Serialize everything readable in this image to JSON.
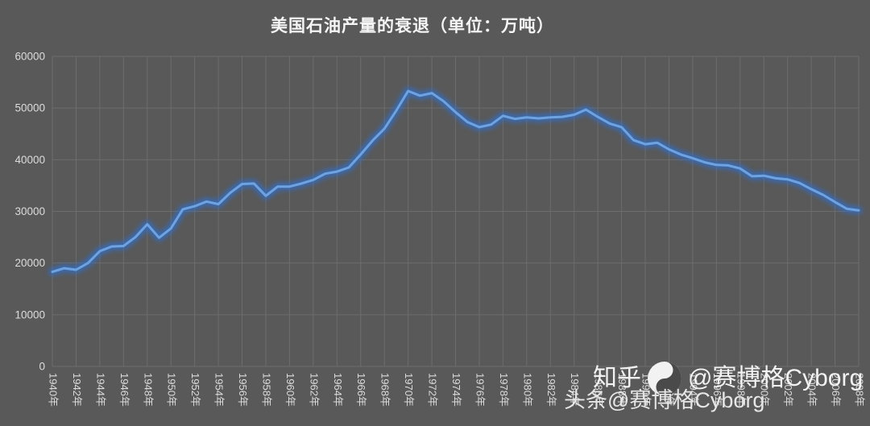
{
  "page": {
    "background_color": "#595959"
  },
  "chart_data": {
    "type": "line",
    "title": "美国石油产量的衰退（单位：万吨）",
    "xlabel": "",
    "ylabel": "",
    "unit": "万吨",
    "legend": "none",
    "grid": true,
    "ylim": [
      0,
      60000
    ],
    "ytick_step": 10000,
    "yticks": [
      "0",
      "10000",
      "20000",
      "30000",
      "40000",
      "50000",
      "60000"
    ],
    "x_tick_every": 2,
    "xtick_labels": [
      "1940年",
      "1942年",
      "1944年",
      "1946年",
      "1948年",
      "1950年",
      "1952年",
      "1954年",
      "1956年",
      "1958年",
      "1960年",
      "1962年",
      "1964年",
      "1966年",
      "1968年",
      "1970年",
      "1972年",
      "1974年",
      "1976年",
      "1978年",
      "1980年",
      "1982年",
      "1984年",
      "1986年",
      "1988年",
      "1990年",
      "1992年",
      "1994年",
      "1996年",
      "1998年",
      "2000年",
      "2002年",
      "2004年",
      "2006年",
      "2008年"
    ],
    "years": [
      1940,
      1941,
      1942,
      1943,
      1944,
      1945,
      1946,
      1947,
      1948,
      1949,
      1950,
      1951,
      1952,
      1953,
      1954,
      1955,
      1956,
      1957,
      1958,
      1959,
      1960,
      1961,
      1962,
      1963,
      1964,
      1965,
      1966,
      1967,
      1968,
      1969,
      1970,
      1971,
      1972,
      1973,
      1974,
      1975,
      1976,
      1977,
      1978,
      1979,
      1980,
      1981,
      1982,
      1983,
      1984,
      1985,
      1986,
      1987,
      1988,
      1989,
      1990,
      1991,
      1992,
      1993,
      1994,
      1995,
      1996,
      1997,
      1998,
      1999,
      2000,
      2001,
      2002,
      2003,
      2004,
      2005,
      2006,
      2007,
      2008
    ],
    "values": [
      18300,
      19000,
      18700,
      20000,
      22300,
      23200,
      23300,
      25000,
      27500,
      24900,
      26700,
      30400,
      31000,
      31900,
      31400,
      33600,
      35300,
      35400,
      33000,
      34800,
      34800,
      35400,
      36100,
      37300,
      37700,
      38500,
      41000,
      43700,
      46000,
      49500,
      53300,
      52400,
      52900,
      51300,
      49200,
      47300,
      46300,
      46800,
      48500,
      47900,
      48200,
      48000,
      48200,
      48300,
      48700,
      49700,
      48300,
      47000,
      46300,
      43800,
      43000,
      43300,
      42000,
      41000,
      40300,
      39500,
      39000,
      38900,
      38300,
      36800,
      36900,
      36400,
      36200,
      35500,
      34300,
      33200,
      31800,
      30500,
      30200
    ],
    "line_color": "#6ea3e0",
    "glow_color": "#2f6fd0",
    "background_color": "#595959",
    "grid_color": "#6d6d6d",
    "label_color": "#dcdcdc"
  },
  "watermark": {
    "line1_prefix": "知乎",
    "line1_handle": "@赛博格Cyborg",
    "line2": "头条@赛博格Cyborg",
    "logo": "cyborg-avatar"
  }
}
